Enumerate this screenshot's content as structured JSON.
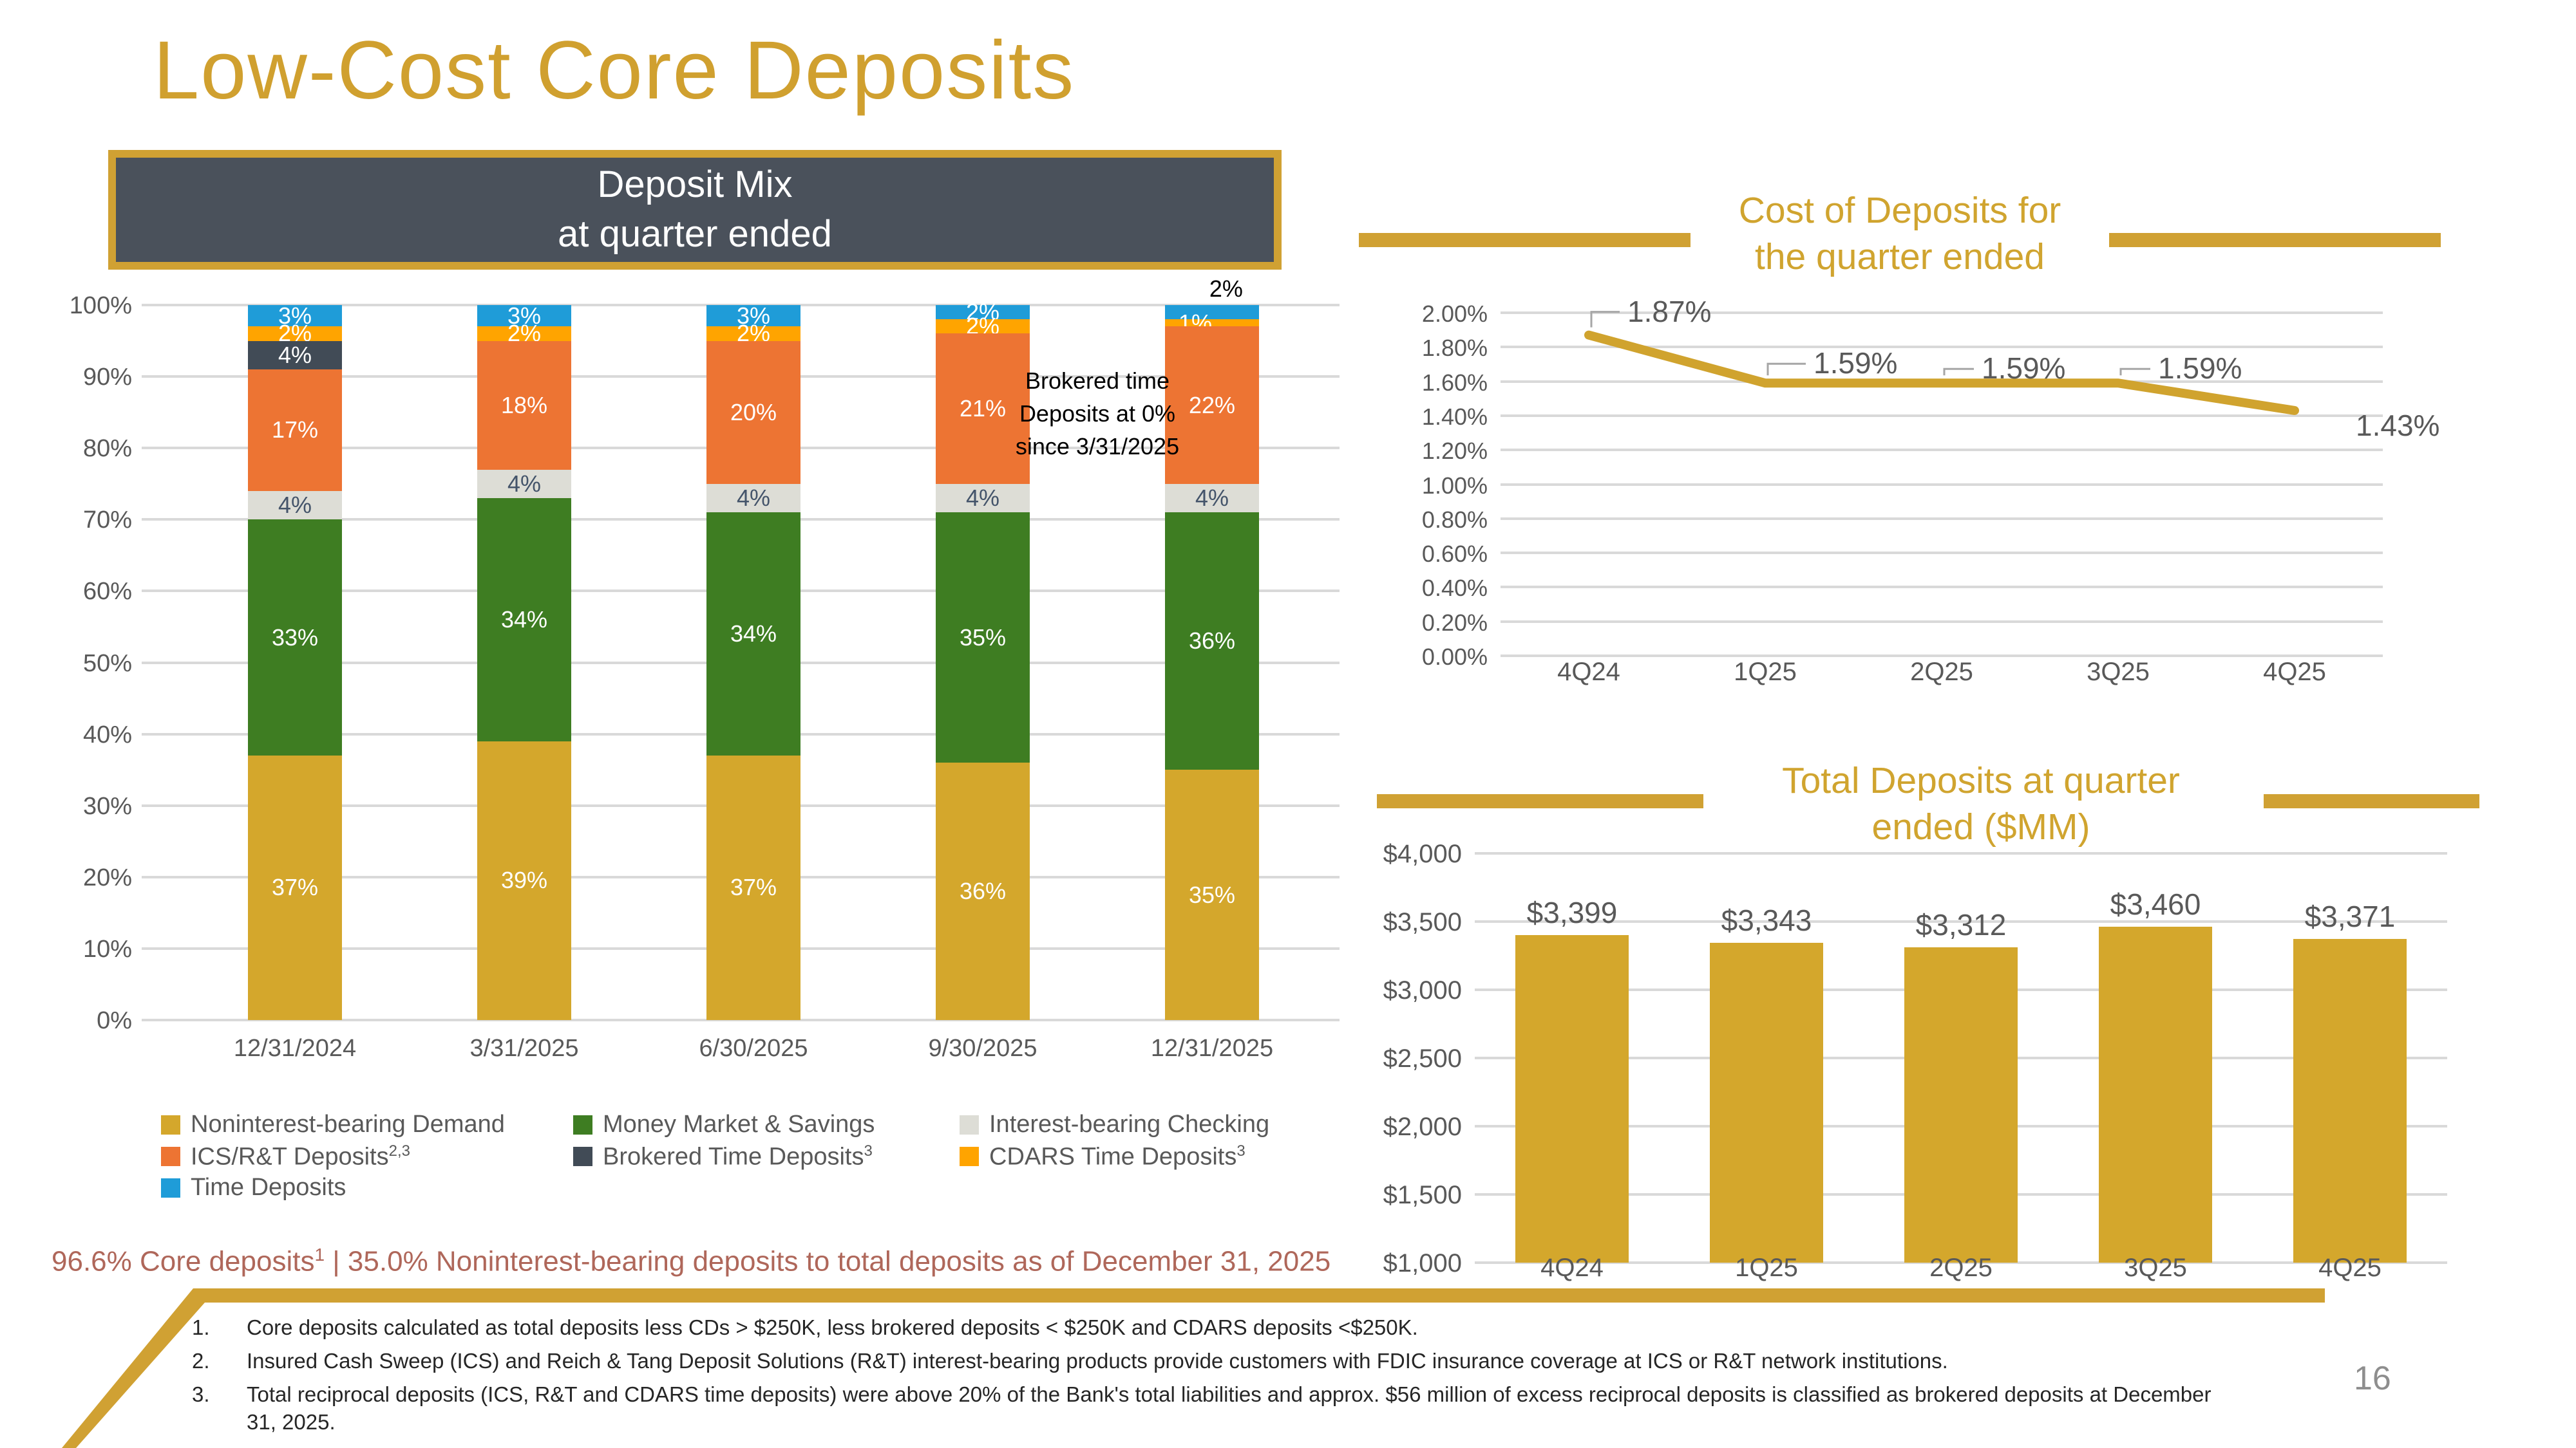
{
  "slide": {
    "title": "Low-Cost Core Deposits",
    "page_number": "16"
  },
  "header_box": {
    "line1": "Deposit Mix",
    "line2": "at quarter ended"
  },
  "colors": {
    "accent_gold": "#D0A133",
    "title_gold": "#D0A02F",
    "chart_title_gold": "#D0A42F",
    "header_box_bg": "#4A515B",
    "gridline_gray": "#D9D9D9",
    "axis_text_gray": "#595959",
    "highlight_red": "#AF675A",
    "leader_gray": "#A6A6A6",
    "annotation_black": "#000000"
  },
  "chart_data": [
    {
      "id": "deposit_mix",
      "type": "bar",
      "stacked": true,
      "title": "Deposit Mix at quarter ended",
      "categories": [
        "12/31/2024",
        "3/31/2025",
        "6/30/2025",
        "9/30/2025",
        "12/31/2025"
      ],
      "ylim": [
        0,
        100
      ],
      "ytick_labels": [
        "100%",
        "90%",
        "80%",
        "70%",
        "60%",
        "50%",
        "40%",
        "30%",
        "20%",
        "10%",
        "0%"
      ],
      "unit": "%",
      "annotation": "Brokered time Deposits at 0% since 3/31/2025",
      "series": [
        {
          "key": "demand",
          "name": "Noninterest-bearing Demand",
          "color": "#D4A72C",
          "text_color": "#FFFFFF",
          "values": [
            37,
            39,
            37,
            36,
            35
          ]
        },
        {
          "key": "mms",
          "name": "Money Market & Savings",
          "color": "#3E7D22",
          "text_color": "#FFFFFF",
          "values": [
            33,
            34,
            34,
            35,
            36
          ]
        },
        {
          "key": "ibc",
          "name": "Interest-bearing Checking",
          "color": "#DDDDD6",
          "text_color": "#44546A",
          "values": [
            4,
            4,
            4,
            4,
            4
          ]
        },
        {
          "key": "ics",
          "name": "ICS/R&T Deposits",
          "sup": "2,3",
          "color": "#ED7433",
          "text_color": "#FFFFFF",
          "values": [
            17,
            18,
            20,
            21,
            22
          ]
        },
        {
          "key": "brokered",
          "name": "Brokered Time Deposits",
          "sup": "3",
          "color": "#414B56",
          "text_color": "#FFFFFF",
          "values": [
            4,
            0,
            0,
            0,
            0
          ]
        },
        {
          "key": "cdars",
          "name": "CDARS Time Deposits",
          "sup": "3",
          "color": "#FFA400",
          "text_color": "#FFFFFF",
          "values": [
            2,
            2,
            2,
            2,
            1
          ]
        },
        {
          "key": "time",
          "name": "Time Deposits",
          "color": "#1F9CD8",
          "text_color": "#FFFFFF",
          "values": [
            3,
            3,
            3,
            2,
            2
          ]
        }
      ]
    },
    {
      "id": "cost_of_deposits",
      "type": "line",
      "title": "Cost of Deposits for the quarter ended",
      "title_lines": [
        "Cost of Deposits for",
        "the quarter ended"
      ],
      "categories": [
        "4Q24",
        "1Q25",
        "2Q25",
        "3Q25",
        "4Q25"
      ],
      "values": [
        1.87,
        1.59,
        1.59,
        1.59,
        1.43
      ],
      "point_labels": [
        "1.87%",
        "1.59%",
        "1.59%",
        "1.59%",
        "1.43%"
      ],
      "ylim": [
        0,
        2.0
      ],
      "ytick_labels": [
        "2.00%",
        "1.80%",
        "1.60%",
        "1.40%",
        "1.20%",
        "1.00%",
        "0.80%",
        "0.60%",
        "0.40%",
        "0.20%",
        "0.00%"
      ],
      "unit": "%",
      "line_color": "#D0A32E",
      "legend_position": "none",
      "grid": true
    },
    {
      "id": "total_deposits",
      "type": "bar",
      "stacked": false,
      "title": "Total Deposits at quarter ended ($MM)",
      "title_lines": [
        "Total Deposits at quarter",
        "ended ($MM)"
      ],
      "categories": [
        "4Q24",
        "1Q25",
        "2Q25",
        "3Q25",
        "4Q25"
      ],
      "values": [
        3399,
        3343,
        3312,
        3460,
        3371
      ],
      "bar_labels": [
        "$3,399",
        "$3,343",
        "$3,312",
        "$3,460",
        "$3,371"
      ],
      "ylim": [
        1000,
        4000
      ],
      "ytick_labels": [
        "$4,000",
        "$3,500",
        "$3,000",
        "$2,500",
        "$2,000",
        "$1,500",
        "$1,000"
      ],
      "unit": "$MM",
      "bar_color": "#D4A72C",
      "grid": true
    }
  ],
  "highlight": {
    "text_before_sup": "96.6% Core deposits",
    "sup": "1",
    "text_after_sup": " | 35.0% Noninterest-bearing deposits to total deposits as of December 31, 2025"
  },
  "footnotes": [
    {
      "num": "1.",
      "text": "Core deposits calculated as total deposits less CDs > $250K, less brokered deposits < $250K and CDARS deposits <$250K."
    },
    {
      "num": "2.",
      "text": "Insured Cash Sweep (ICS) and Reich & Tang Deposit Solutions (R&T) interest-bearing products provide customers with FDIC insurance coverage at ICS or R&T network institutions."
    },
    {
      "num": "3.",
      "text": "Total reciprocal deposits (ICS, R&T and CDARS time deposits) were above 20% of the Bank's total liabilities and approx. $56 million of excess reciprocal deposits is classified as brokered deposits at December 31, 2025."
    }
  ]
}
